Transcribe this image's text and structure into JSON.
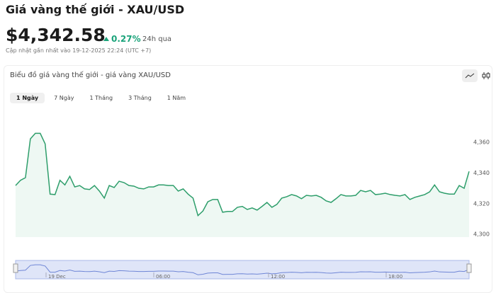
{
  "header": {
    "title": "Giá vàng thế giới - XAU/USD",
    "price": "$4,342.58",
    "change": "0.27%",
    "period": "24h qua",
    "updated": "Cập nhật gần nhất vào 19-12-2025 22:24 (UTC +7)"
  },
  "card": {
    "title": "Biểu đồ giá vàng thế giới - giá vàng XAU/USD",
    "tabs": [
      "1 Ngày",
      "7 Ngày",
      "1 Tháng",
      "3 Tháng",
      "1 Năm"
    ]
  },
  "chart_data": {
    "type": "line",
    "color": "#2e9e6b",
    "values": [
      4331.6,
      4335,
      4336.7,
      4362,
      4365.6,
      4365.6,
      4358.7,
      4326,
      4325.7,
      4335,
      4332,
      4337.6,
      4330.7,
      4331.6,
      4329.4,
      4329,
      4331.6,
      4328,
      4323.4,
      4331.6,
      4330.3,
      4334.4,
      4333.5,
      4331.6,
      4331.2,
      4329.8,
      4329.4,
      4330.7,
      4330.7,
      4332,
      4332,
      4331.6,
      4331.6,
      4328,
      4329.4,
      4326,
      4323.4,
      4312,
      4315,
      4321,
      4322.5,
      4322.5,
      4314.2,
      4314.7,
      4314.7,
      4317.4,
      4318,
      4316,
      4317,
      4315.6,
      4318,
      4320.6,
      4317.4,
      4319.3,
      4323.4,
      4324.3,
      4325.7,
      4324.8,
      4323,
      4325.2,
      4324.8,
      4325.2,
      4323.9,
      4321.6,
      4320.6,
      4323,
      4325.7,
      4324.8,
      4324.8,
      4325.2,
      4328.4,
      4327.5,
      4328.4,
      4325.7,
      4326,
      4326.6,
      4325.7,
      4325.2,
      4324.8,
      4325.7,
      4322.5,
      4323.9,
      4324.8,
      4325.7,
      4327.5,
      4332,
      4327.5,
      4326.6,
      4326,
      4326,
      4331.6,
      4329.8,
      4340.8
    ],
    "ylim": [
      4298,
      4381
    ],
    "yticks": [
      {
        "value": 4300,
        "label": "4,300"
      },
      {
        "value": 4320,
        "label": "4,320"
      },
      {
        "value": 4340,
        "label": "4,340"
      },
      {
        "value": 4360,
        "label": "4,360"
      }
    ]
  },
  "navigator": {
    "labels": [
      "19 Dec",
      "06:00",
      "12:00",
      "18:00"
    ]
  }
}
